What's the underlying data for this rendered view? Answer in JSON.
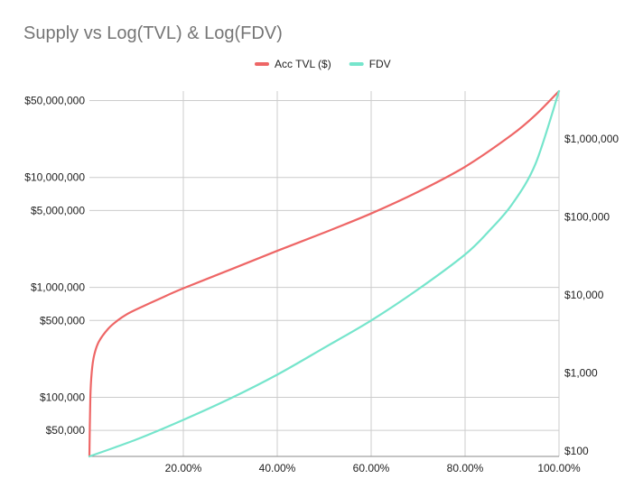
{
  "chart_data": {
    "type": "line",
    "title": "Supply vs Log(TVL) & Log(FDV)",
    "legend_position": "top-center",
    "grid": true,
    "x_axis": {
      "format": "percent",
      "range": [
        0,
        1
      ],
      "ticks": [
        0.2,
        0.4,
        0.6,
        0.8,
        1.0
      ],
      "tick_labels": [
        "20.00%",
        "40.00%",
        "60.00%",
        "80.00%",
        "100.00%"
      ]
    },
    "y_axis_left": {
      "scale": "log",
      "range": [
        29000,
        61000000
      ],
      "ticks": [
        50000,
        100000,
        500000,
        1000000,
        5000000,
        10000000,
        50000000
      ],
      "tick_labels": [
        "$50,000",
        "$100,000",
        "$500,000",
        "$1,000,000",
        "$5,000,000",
        "$10,000,000",
        "$50,000,000"
      ]
    },
    "y_axis_right": {
      "scale": "log",
      "range": [
        85,
        4100000
      ],
      "ticks": [
        100,
        1000,
        10000,
        100000,
        1000000
      ],
      "tick_labels": [
        "$100",
        "$1,000",
        "$10,000",
        "$100,000",
        "$1,000,000"
      ]
    },
    "series": [
      {
        "name": "Acc TVL ($)",
        "axis": "left",
        "color": "#ee6666",
        "x": [
          0,
          0.002,
          0.005,
          0.01,
          0.02,
          0.04,
          0.06,
          0.08,
          0.1,
          0.15,
          0.2,
          0.3,
          0.4,
          0.5,
          0.6,
          0.7,
          0.8,
          0.9,
          0.95,
          1.0
        ],
        "y": [
          29000,
          100000,
          170000,
          240000,
          320000,
          420000,
          500000,
          570000,
          630000,
          790000,
          980000,
          1450000,
          2150000,
          3150000,
          4700000,
          7400000,
          12500000,
          24500000,
          37000000,
          61000000
        ]
      },
      {
        "name": "FDV",
        "axis": "right",
        "color": "#76e5cc",
        "x": [
          0,
          0.1,
          0.2,
          0.3,
          0.4,
          0.5,
          0.6,
          0.7,
          0.8,
          0.85,
          0.9,
          0.95,
          1.0
        ],
        "y": [
          85,
          140,
          250,
          470,
          950,
          2100,
          4700,
          11800,
          33000,
          65000,
          145000,
          480000,
          4100000
        ]
      }
    ]
  }
}
